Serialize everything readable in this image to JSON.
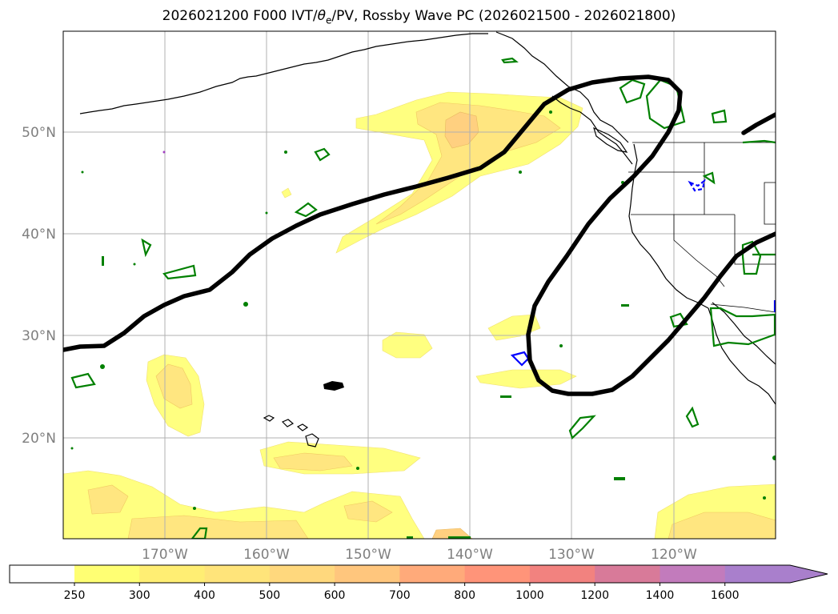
{
  "title": {
    "prefix": "2026021200 F000 IVT/",
    "theta": "θ",
    "sub": "e",
    "suffix": "/PV, Rossby Wave PC (2026021500 - 2026021800)"
  },
  "map": {
    "lat_labels": [
      "20°N",
      "30°N",
      "40°N",
      "50°N"
    ],
    "lon_labels": [
      "170°W",
      "160°W",
      "150°W",
      "140°W",
      "130°W",
      "120°W"
    ]
  },
  "colorbar": {
    "ticks": [
      "250",
      "300",
      "400",
      "500",
      "600",
      "700",
      "800",
      "1000",
      "1200",
      "1400",
      "1600"
    ],
    "colors": [
      "#ffff73",
      "#ffee73",
      "#ffe47a",
      "#ffd87d",
      "#ffc67d",
      "#ffaa7a",
      "#ff9479",
      "#f2827f",
      "#d87a99",
      "#c27bbc",
      "#a97fcc"
    ],
    "extend_color": "#a97fcc"
  },
  "colors": {
    "ivt_light": "#ffff80",
    "ivt_mid": "#ffe680",
    "ivt_dark": "#ffd080",
    "rossby_wave": "#000000",
    "theta_e": "#008000",
    "pv": "#0000ff",
    "coast": "#000000",
    "grid": "#b0b0b0"
  }
}
